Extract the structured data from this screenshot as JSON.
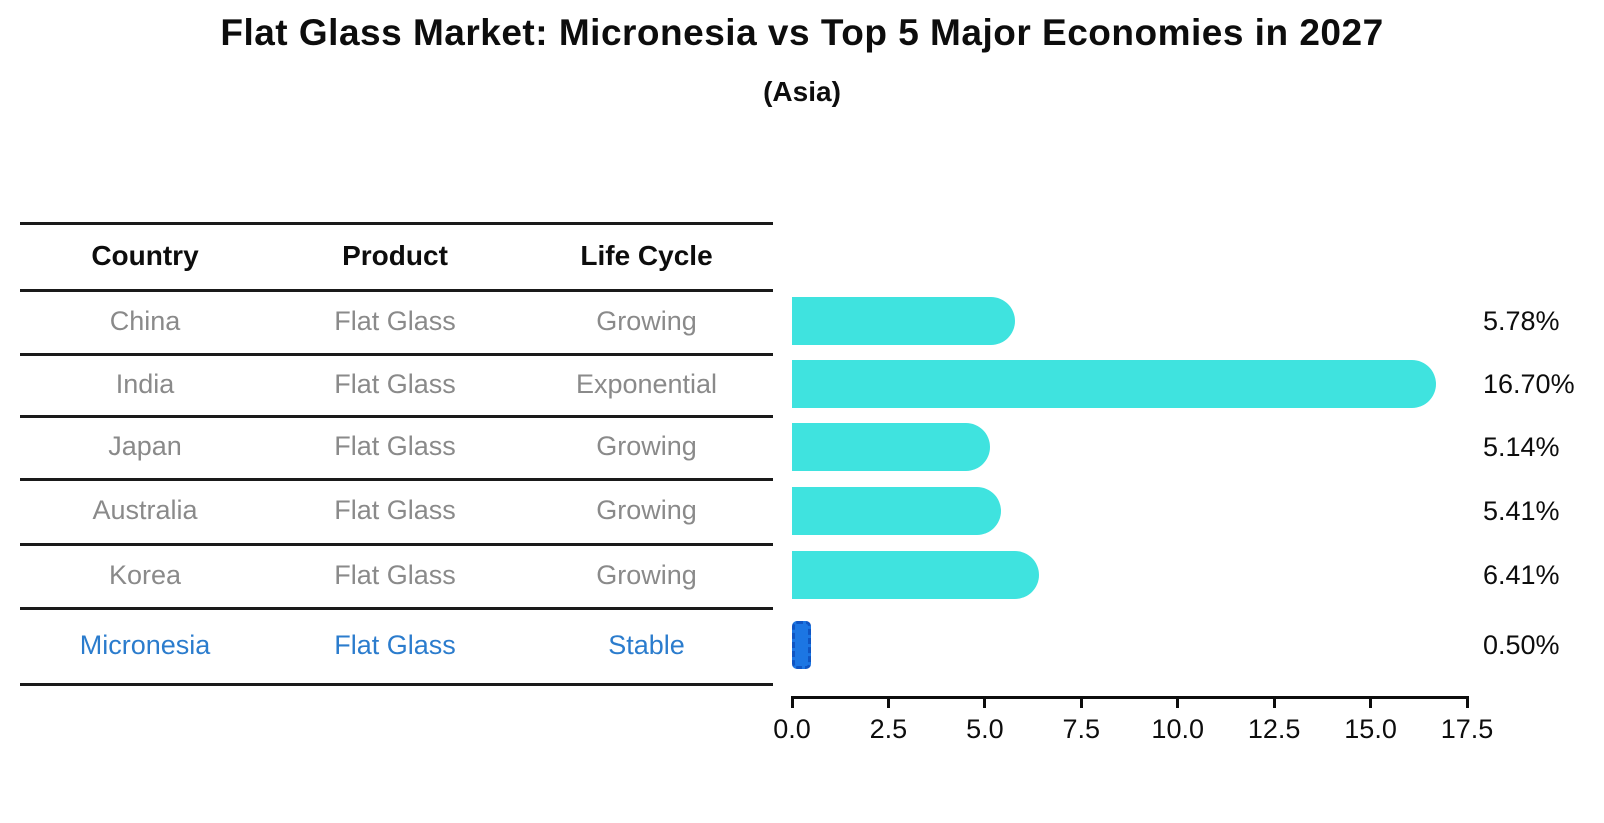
{
  "header": {
    "title": "Flat Glass Market: Micronesia vs Top 5 Major Economies in 2027",
    "subtitle": "(Asia)"
  },
  "table": {
    "columns": [
      "Country",
      "Product",
      "Life Cycle"
    ],
    "rows": [
      {
        "country": "China",
        "product": "Flat Glass",
        "life_cycle": "Growing",
        "highlight": false
      },
      {
        "country": "India",
        "product": "Flat Glass",
        "life_cycle": "Exponential",
        "highlight": false
      },
      {
        "country": "Japan",
        "product": "Flat Glass",
        "life_cycle": "Growing",
        "highlight": false
      },
      {
        "country": "Australia",
        "product": "Flat Glass",
        "life_cycle": "Growing",
        "highlight": false
      },
      {
        "country": "Korea",
        "product": "Flat Glass",
        "life_cycle": "Growing",
        "highlight": false
      },
      {
        "country": "Micronesia",
        "product": "Flat Glass",
        "life_cycle": "Stable",
        "highlight": true
      }
    ]
  },
  "chart_data": {
    "type": "bar",
    "orientation": "horizontal",
    "title": "Flat Glass Market: Micronesia vs Top 5 Major Economies in 2027",
    "subtitle": "(Asia)",
    "categories": [
      "China",
      "India",
      "Japan",
      "Australia",
      "Korea",
      "Micronesia"
    ],
    "values": [
      5.78,
      16.7,
      5.14,
      5.41,
      6.41,
      0.5
    ],
    "value_labels": [
      "5.78%",
      "16.70%",
      "5.14%",
      "5.41%",
      "6.41%",
      "0.50%"
    ],
    "x_ticks": [
      0.0,
      2.5,
      5.0,
      7.5,
      10.0,
      12.5,
      15.0,
      17.5
    ],
    "x_tick_labels": [
      "0.0",
      "2.5",
      "5.0",
      "7.5",
      "10.0",
      "12.5",
      "15.0",
      "17.5"
    ],
    "xlim": [
      0,
      17.5
    ],
    "xlabel": "",
    "ylabel": "",
    "grid": false,
    "legend": false,
    "bar_color": "#3FE3DF",
    "highlight_bar_color": "#1C76E3",
    "highlight_index": 5
  },
  "colors": {
    "bar": "#3FE3DF",
    "highlight_bar": "#1C76E3",
    "highlight_text": "#2B7CCD",
    "row_text": "#8A8A8A",
    "header_text": "#0D0D0D",
    "line": "#1A1A1A"
  }
}
